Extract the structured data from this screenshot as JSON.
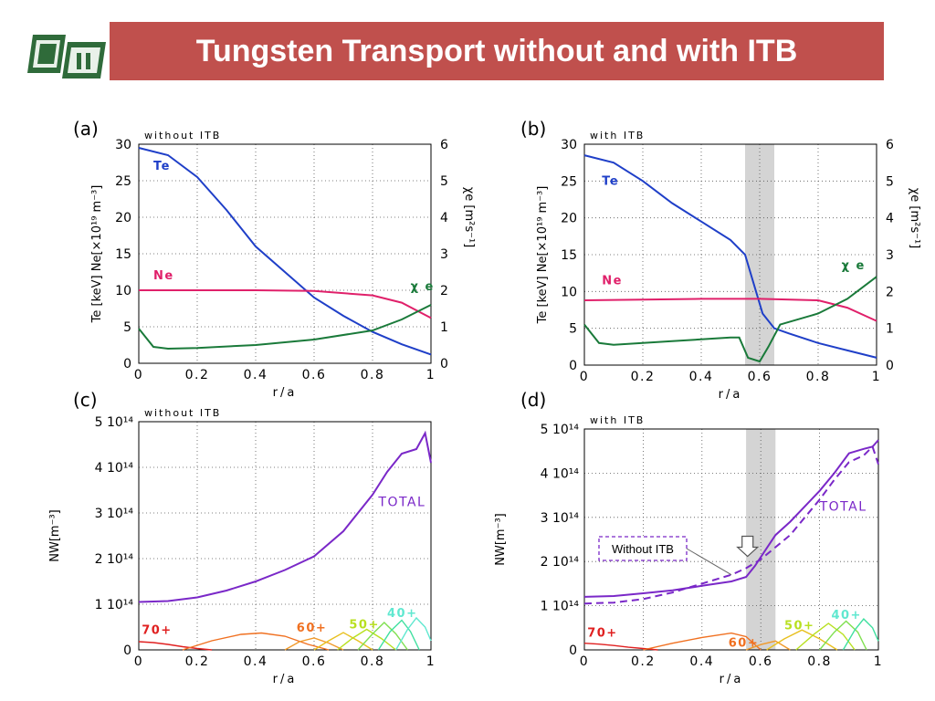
{
  "slide": {
    "title": "Tungsten Transport without and with ITB"
  },
  "colors": {
    "title_bar": "#c0504d",
    "te": "#1f3fc8",
    "ne": "#e0206a",
    "chi": "#1a7a3a",
    "total": "#7a28c8",
    "itb_band": "#d4d4d4",
    "charge_70": "#e02020",
    "charge_60": "#f07020",
    "charge_50": "#b8e020",
    "charge_40": "#60e8d0"
  },
  "chart_data": [
    {
      "panel": "(a)",
      "type": "line",
      "subtitle": "without ITB",
      "xlabel": "r/a",
      "ylabel_left": "Te [keV]  Ne[×10¹⁹ m⁻³]",
      "ylabel_right": "χe [m²s⁻¹]",
      "xlim": [
        0,
        1
      ],
      "ylim_left": [
        0,
        30
      ],
      "ylim_right": [
        0,
        6
      ],
      "x_ticks": [
        "0",
        "0.2",
        "0.4",
        "0.6",
        "0.8",
        "1"
      ],
      "y_ticks_left": [
        "0",
        "5",
        "10",
        "15",
        "20",
        "25",
        "30"
      ],
      "y_ticks_right": [
        "0",
        "1",
        "2",
        "3",
        "4",
        "5",
        "6"
      ],
      "grid": true,
      "series": [
        {
          "name": "Te",
          "axis": "left",
          "x": [
            0,
            0.1,
            0.2,
            0.3,
            0.4,
            0.5,
            0.6,
            0.7,
            0.8,
            0.9,
            1.0
          ],
          "values": [
            29.5,
            28.5,
            25.5,
            21.0,
            16.0,
            12.5,
            9.0,
            6.5,
            4.3,
            2.6,
            1.2
          ]
        },
        {
          "name": "Ne",
          "axis": "left",
          "x": [
            0,
            0.2,
            0.4,
            0.6,
            0.8,
            0.9,
            1.0
          ],
          "values": [
            10.0,
            10.0,
            10.0,
            9.9,
            9.3,
            8.3,
            6.2
          ]
        },
        {
          "name": "χe",
          "axis": "right",
          "x": [
            0,
            0.05,
            0.1,
            0.2,
            0.4,
            0.6,
            0.8,
            0.9,
            1.0
          ],
          "values": [
            0.95,
            0.45,
            0.4,
            0.42,
            0.5,
            0.65,
            0.9,
            1.2,
            1.6
          ]
        }
      ],
      "series_labels": [
        {
          "text": "Te",
          "color_key": "te",
          "x": 0.05,
          "y": 26.5,
          "axis": "left"
        },
        {
          "text": "Ne",
          "color_key": "ne",
          "x": 0.05,
          "y": 11.5,
          "axis": "left"
        },
        {
          "text": "χ e",
          "color_key": "chi",
          "x": 0.93,
          "y": 2.0,
          "axis": "right"
        }
      ]
    },
    {
      "panel": "(b)",
      "type": "line",
      "subtitle": "with ITB",
      "xlabel": "r/a",
      "ylabel_left": "Te [keV]  Ne[×10¹⁹ m⁻³]",
      "ylabel_right": "χe [m²s⁻¹]",
      "xlim": [
        0,
        1
      ],
      "ylim_left": [
        0,
        30
      ],
      "ylim_right": [
        0,
        6
      ],
      "x_ticks": [
        "0",
        "0.2",
        "0.4",
        "0.6",
        "0.8",
        "1"
      ],
      "y_ticks_left": [
        "0",
        "5",
        "10",
        "15",
        "20",
        "25",
        "30"
      ],
      "y_ticks_right": [
        "0",
        "1",
        "2",
        "3",
        "4",
        "5",
        "6"
      ],
      "grid": true,
      "itb_band": [
        0.55,
        0.65
      ],
      "series": [
        {
          "name": "Te",
          "axis": "left",
          "x": [
            0,
            0.1,
            0.2,
            0.3,
            0.4,
            0.5,
            0.55,
            0.58,
            0.61,
            0.65,
            0.7,
            0.8,
            0.9,
            1.0
          ],
          "values": [
            28.5,
            27.5,
            25.0,
            22.0,
            19.5,
            17.0,
            15.0,
            11.0,
            7.0,
            5.0,
            4.3,
            3.0,
            2.0,
            1.0
          ]
        },
        {
          "name": "Ne",
          "axis": "left",
          "x": [
            0,
            0.2,
            0.4,
            0.6,
            0.8,
            0.9,
            1.0
          ],
          "values": [
            8.8,
            8.9,
            9.0,
            9.0,
            8.8,
            7.8,
            6.0
          ]
        },
        {
          "name": "χe",
          "axis": "right",
          "x": [
            0,
            0.05,
            0.1,
            0.2,
            0.3,
            0.4,
            0.5,
            0.53,
            0.56,
            0.6,
            0.63,
            0.67,
            0.8,
            0.9,
            1.0
          ],
          "values": [
            1.1,
            0.6,
            0.55,
            0.6,
            0.65,
            0.7,
            0.75,
            0.75,
            0.2,
            0.1,
            0.5,
            1.1,
            1.4,
            1.8,
            2.4
          ]
        }
      ],
      "series_labels": [
        {
          "text": "Te",
          "color_key": "te",
          "x": 0.06,
          "y": 24.5,
          "axis": "left"
        },
        {
          "text": "Ne",
          "color_key": "ne",
          "x": 0.06,
          "y": 11.0,
          "axis": "left"
        },
        {
          "text": "χ e",
          "color_key": "chi",
          "x": 0.88,
          "y": 2.6,
          "axis": "right"
        }
      ]
    },
    {
      "panel": "(c)",
      "type": "line",
      "subtitle": "without ITB",
      "xlabel": "r/a",
      "ylabel_left": "NW[m⁻³]",
      "xlim": [
        0,
        1
      ],
      "ylim": [
        0,
        5
      ],
      "x_ticks": [
        "0",
        "0.2",
        "0.4",
        "0.6",
        "0.8",
        "1"
      ],
      "y_ticks": [
        "0",
        "1 10¹⁴",
        "2 10¹⁴",
        "3 10¹⁴",
        "4 10¹⁴",
        "5 10¹⁴"
      ],
      "grid": true,
      "series": [
        {
          "name": "TOTAL",
          "x": [
            0,
            0.1,
            0.2,
            0.3,
            0.4,
            0.5,
            0.6,
            0.7,
            0.8,
            0.85,
            0.9,
            0.95,
            0.98,
            1.0
          ],
          "values": [
            1.05,
            1.07,
            1.15,
            1.3,
            1.5,
            1.75,
            2.05,
            2.6,
            3.4,
            3.9,
            4.3,
            4.4,
            4.75,
            4.1
          ]
        },
        {
          "name": "70+",
          "x": [
            0,
            0.05,
            0.1,
            0.15,
            0.2,
            0.25
          ],
          "values": [
            0.18,
            0.16,
            0.12,
            0.07,
            0.03,
            0.0
          ]
        },
        {
          "name": "60+",
          "x": [
            0.15,
            0.25,
            0.35,
            0.42,
            0.5,
            0.58,
            0.65
          ],
          "values": [
            0.0,
            0.2,
            0.34,
            0.37,
            0.3,
            0.12,
            0.0
          ]
        },
        {
          "name": "",
          "x": [
            0.5,
            0.55,
            0.6,
            0.65,
            0.7
          ],
          "values": [
            0.0,
            0.18,
            0.26,
            0.15,
            0.0
          ]
        },
        {
          "name": "",
          "x": [
            0.6,
            0.65,
            0.7,
            0.75,
            0.8
          ],
          "values": [
            0.0,
            0.2,
            0.38,
            0.2,
            0.0
          ]
        },
        {
          "name": "50+",
          "x": [
            0.68,
            0.73,
            0.78,
            0.83,
            0.88
          ],
          "values": [
            0.0,
            0.25,
            0.45,
            0.25,
            0.0
          ]
        },
        {
          "name": "",
          "x": [
            0.75,
            0.8,
            0.84,
            0.88,
            0.92
          ],
          "values": [
            0.0,
            0.35,
            0.6,
            0.35,
            0.0
          ]
        },
        {
          "name": "",
          "x": [
            0.82,
            0.86,
            0.9,
            0.93,
            0.96
          ],
          "values": [
            0.0,
            0.4,
            0.65,
            0.4,
            0.0
          ]
        },
        {
          "name": "40+",
          "x": [
            0.88,
            0.92,
            0.95,
            0.98,
            1.0
          ],
          "values": [
            0.0,
            0.45,
            0.7,
            0.5,
            0.2
          ]
        }
      ],
      "series_labels": [
        {
          "text": "TOTAL",
          "color_key": "total",
          "x": 0.82,
          "y": 3.15
        },
        {
          "text": "70+",
          "color_key": "charge_70",
          "x": 0.01,
          "y": 0.35
        },
        {
          "text": "60+",
          "color_key": "charge_60",
          "x": 0.54,
          "y": 0.4
        },
        {
          "text": "50+",
          "color_key": "charge_50",
          "x": 0.72,
          "y": 0.47
        },
        {
          "text": "40+",
          "color_key": "charge_40",
          "x": 0.85,
          "y": 0.72
        }
      ]
    },
    {
      "panel": "(d)",
      "type": "line",
      "subtitle": "with ITB",
      "xlabel": "r/a",
      "ylabel_left": "NW[m⁻³]",
      "xlim": [
        0,
        1
      ],
      "ylim": [
        0,
        5
      ],
      "x_ticks": [
        "0",
        "0.2",
        "0.4",
        "0.6",
        "0.8",
        "1"
      ],
      "y_ticks": [
        "0",
        "1 10¹⁴",
        "2 10¹⁴",
        "3 10¹⁴",
        "4 10¹⁴",
        "5 10¹⁴"
      ],
      "grid": true,
      "itb_band": [
        0.55,
        0.65
      ],
      "annotation": "Without ITB",
      "series": [
        {
          "name": "TOTAL",
          "x": [
            0,
            0.1,
            0.2,
            0.3,
            0.4,
            0.5,
            0.55,
            0.58,
            0.62,
            0.65,
            0.7,
            0.8,
            0.85,
            0.9,
            0.95,
            0.98,
            1.0
          ],
          "values": [
            1.2,
            1.22,
            1.28,
            1.35,
            1.45,
            1.55,
            1.65,
            1.9,
            2.3,
            2.6,
            2.9,
            3.6,
            4.0,
            4.45,
            4.55,
            4.6,
            4.75
          ]
        },
        {
          "name": "Without ITB",
          "dashed": true,
          "x": [
            0,
            0.1,
            0.2,
            0.3,
            0.4,
            0.5,
            0.55,
            0.6,
            0.7,
            0.8,
            0.85,
            0.9,
            0.95,
            0.98,
            1.0
          ],
          "values": [
            1.05,
            1.07,
            1.15,
            1.3,
            1.5,
            1.7,
            1.85,
            2.05,
            2.6,
            3.4,
            3.85,
            4.25,
            4.4,
            4.6,
            4.2
          ]
        },
        {
          "name": "70+",
          "x": [
            0,
            0.05,
            0.1,
            0.15,
            0.2,
            0.25
          ],
          "values": [
            0.15,
            0.13,
            0.1,
            0.06,
            0.03,
            0.0
          ]
        },
        {
          "name": "60+",
          "x": [
            0.2,
            0.3,
            0.4,
            0.5,
            0.55,
            0.6
          ],
          "values": [
            0.0,
            0.15,
            0.28,
            0.38,
            0.3,
            0.0
          ]
        },
        {
          "name": "",
          "x": [
            0.55,
            0.6,
            0.65,
            0.7
          ],
          "values": [
            0.0,
            0.12,
            0.2,
            0.0
          ]
        },
        {
          "name": "50+",
          "x": [
            0.62,
            0.68,
            0.74,
            0.8,
            0.86
          ],
          "values": [
            0.0,
            0.25,
            0.45,
            0.25,
            0.0
          ]
        },
        {
          "name": "",
          "x": [
            0.72,
            0.78,
            0.83,
            0.88,
            0.92
          ],
          "values": [
            0.0,
            0.35,
            0.6,
            0.35,
            0.0
          ]
        },
        {
          "name": "",
          "x": [
            0.8,
            0.85,
            0.89,
            0.93,
            0.96
          ],
          "values": [
            0.0,
            0.4,
            0.65,
            0.4,
            0.0
          ]
        },
        {
          "name": "40+",
          "x": [
            0.88,
            0.92,
            0.95,
            0.98,
            1.0
          ],
          "values": [
            0.0,
            0.45,
            0.7,
            0.5,
            0.2
          ]
        }
      ],
      "series_labels": [
        {
          "text": "TOTAL",
          "color_key": "total",
          "x": 0.8,
          "y": 3.15
        },
        {
          "text": "70+",
          "color_key": "charge_70",
          "x": 0.01,
          "y": 0.3
        },
        {
          "text": "60+",
          "color_key": "charge_60",
          "x": 0.49,
          "y": 0.07
        },
        {
          "text": "50+",
          "color_key": "charge_50",
          "x": 0.68,
          "y": 0.47
        },
        {
          "text": "40+",
          "color_key": "charge_40",
          "x": 0.84,
          "y": 0.7
        }
      ]
    }
  ]
}
